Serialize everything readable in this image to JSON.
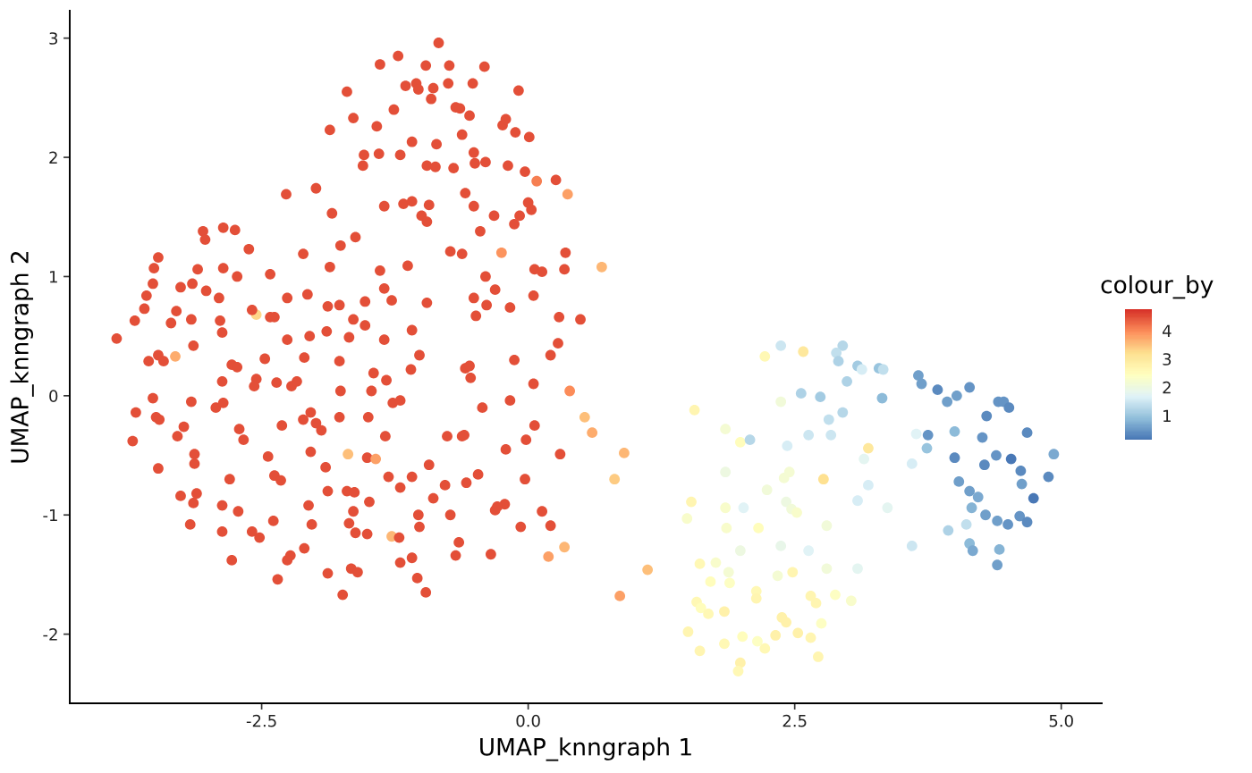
{
  "chart_data": {
    "type": "scatter",
    "xlabel": "UMAP_knngraph 1",
    "ylabel": "UMAP_knngraph 2",
    "clabel": "colour_by",
    "marker": "circle",
    "xlim": [
      -4.3,
      5.38
    ],
    "ylim": [
      -2.58,
      3.23
    ],
    "xticks": [
      -2.5,
      {
        "value": 0,
        "label": "0.0"
      },
      2.5,
      {
        "value": 5,
        "label": "5.0"
      }
    ],
    "yticks": [
      -2,
      -1,
      0,
      1,
      2,
      3
    ],
    "clim": [
      0.15,
      4.76
    ],
    "cticks": [
      1,
      2,
      3,
      4
    ],
    "x": [
      -0.84,
      -1.22,
      -1.39,
      -0.96,
      -0.74,
      -0.41,
      -1.7,
      -1.15,
      -1.05,
      -0.89,
      -0.75,
      -0.52,
      -0.09,
      -1.26,
      -0.91,
      -0.68,
      -0.55,
      -1.64,
      -1.42,
      -0.24,
      -1.86,
      -0.12,
      0.01,
      -1.09,
      -0.86,
      -0.62,
      -1.54,
      -1.4,
      -1.2,
      -0.95,
      -0.7,
      -0.5,
      -0.4,
      -0.19,
      -0.03,
      0.08,
      0.26,
      0.37,
      -2.27,
      -1.99,
      -1.55,
      -0.59,
      -0.51,
      -1.17,
      -1.09,
      -1.35,
      -0.93,
      -1.0,
      -0.95,
      -1.84,
      -0.32,
      -0.45,
      -0.08,
      -0.13,
      0.03,
      0,
      -0.25,
      -0.73,
      -0.62,
      0.35,
      0.69,
      0.06,
      0.13,
      0.34,
      0.05,
      -0.4,
      -0.31,
      -0.51,
      -0.39,
      -0.49,
      0.49,
      0.29,
      -0.17,
      0.28,
      0.21,
      -0.13,
      0.39,
      0.05,
      0.06,
      -0.02,
      -0.43,
      -0.17,
      -0.21,
      -0.6,
      -0.62,
      -0.76,
      -0.47,
      -0.58,
      -0.78,
      -0.03,
      -0.22,
      -0.31,
      0.3,
      0.53,
      0.6,
      0.9,
      0.81,
      0.13,
      -0.07,
      -0.73,
      -0.65,
      -1.03,
      -0.89,
      -0.93,
      -1.09,
      -1.02,
      -1.09,
      -1.04,
      -0.96,
      -1.2,
      -1.28,
      -0.68,
      -0.35,
      0.19,
      0.34,
      1.12,
      0.86,
      -1.03,
      -0.64,
      -0.21,
      -0.51,
      -0.87,
      -0.29,
      0.21,
      -1.21,
      -3.86,
      -3.69,
      -3.6,
      -3.58,
      -3.51,
      -3.47,
      -3.52,
      -3.26,
      -3.15,
      -3.02,
      -2.9,
      -3.1,
      -2.86,
      -2.73,
      -3.05,
      -3.03,
      -2.86,
      -2.75,
      -2.62,
      -2.42,
      -2.26,
      -2.11,
      -2.38,
      -2.42,
      -2.55,
      -2.59,
      -2.26,
      -2.87,
      -2.89,
      -3.16,
      -3.3,
      -3.35,
      -3.14,
      -3.56,
      -3.47,
      -3.42,
      -3.31,
      -3.52,
      -3.16,
      -2.87,
      -2.78,
      -2.73,
      -2.47,
      -2.55,
      -2.57,
      -2.36,
      -2.22,
      -2.17,
      -2.1,
      -2.05,
      -1.89,
      -1.88,
      -1.77,
      -1.68,
      -1.77,
      -1.76,
      -1.86,
      -1.76,
      -1.62,
      -1.53,
      -1.39,
      -1.35,
      -1.28,
      -1.13,
      -0.95,
      -1.64,
      -1.45,
      -1.33,
      -1.27,
      -1.1,
      -1.09,
      -1.02,
      -1.35,
      -1.53,
      -1.47,
      -0.59,
      -0.54,
      -2.07,
      -0.55,
      -3.68,
      -3.49,
      -3.46,
      -3.23,
      -3.29,
      -3.71,
      -3.47,
      -3.13,
      -3.13,
      -2.93,
      -2.71,
      -2.67,
      -2.44,
      -3.26,
      -3.11,
      -3.14,
      -3.17,
      -2.87,
      -2.8,
      -2.72,
      -2.87,
      -2.59,
      -2.52,
      -2.39,
      -2.38,
      -2.32,
      -2.31,
      -2.11,
      -2.04,
      -1.99,
      -2.04,
      -1.9,
      -1.94,
      -1.88,
      -2.06,
      -2.03,
      -2.23,
      -2.26,
      -2.78,
      -2.35,
      -2.1,
      -1.88,
      -1.74,
      -1.66,
      -1.6,
      -1.7,
      -1.63,
      -1.64,
      -1.68,
      -1.62,
      -1.51,
      -1.49,
      -1.69,
      -1.51,
      -1.43,
      -1.77,
      -1.5,
      -1.34,
      -1.31,
      -1.2,
      -2.86,
      -1.2,
      1.56,
      1.85,
      1.99,
      2.08,
      2.22,
      2.37,
      2.43,
      2.45,
      2.4,
      2.24,
      2.02,
      1.85,
      1.85,
      1.53,
      1.49,
      2.16,
      1.99,
      1.86,
      1.61,
      1.76,
      1.88,
      1.89,
      1.71,
      2.14,
      2.14,
      1.58,
      1.62,
      1.69,
      1.84,
      1.5,
      1.61,
      1.84,
      2.01,
      2.15,
      2.22,
      1.99,
      1.97,
      2.37,
      2.58,
      2.95,
      2.89,
      2.91,
      3.09,
      3.13,
      3.29,
      3.33,
      2.99,
      2.56,
      2.74,
      3.32,
      2.82,
      2.95,
      2.63,
      2.84,
      3.19,
      3.15,
      3.64,
      3.6,
      3.75,
      3.74,
      3.66,
      3.69,
      3.84,
      3.93,
      4.02,
      4.14,
      4.0,
      4.0,
      4.26,
      4.3,
      4.41,
      4.46,
      4.51,
      4.68,
      4.39,
      4.53,
      4.28,
      4.62,
      4.93,
      4.88,
      4.63,
      4.04,
      4.14,
      4.22,
      4.74,
      4.16,
      4.29,
      4.4,
      4.5,
      4.61,
      4.68,
      4.11,
      3.94,
      4.14,
      4.17,
      4.42,
      4.4,
      3.6,
      3.37,
      3.09,
      3.19,
      3.09,
      2.8,
      2.63,
      2.37,
      2.8,
      2.77,
      2.42,
      2.47,
      2.52,
      2.34,
      2.48,
      2.65,
      2.7,
      2.88,
      3.03,
      2.38,
      2.42,
      2.75,
      2.32,
      2.53,
      2.65,
      2.72
    ],
    "values": [
      2.96,
      2.85,
      2.78,
      2.77,
      2.77,
      2.76,
      2.55,
      2.6,
      2.62,
      2.58,
      2.62,
      2.62,
      2.56,
      2.4,
      2.49,
      2.42,
      2.35,
      2.33,
      2.26,
      2.27,
      2.23,
      2.21,
      2.17,
      2.13,
      2.11,
      2.19,
      2.02,
      2.03,
      2.02,
      1.93,
      1.91,
      1.95,
      1.96,
      1.93,
      1.88,
      1.8,
      1.81,
      1.69,
      1.69,
      1.74,
      1.93,
      1.7,
      1.59,
      1.61,
      1.63,
      1.59,
      1.6,
      1.51,
      1.46,
      1.53,
      1.51,
      1.38,
      1.51,
      1.44,
      1.56,
      1.62,
      1.2,
      1.21,
      1.19,
      1.2,
      1.08,
      1.06,
      1.04,
      1.06,
      0.84,
      1.0,
      0.89,
      0.82,
      0.76,
      0.67,
      0.64,
      0.66,
      0.74,
      0.44,
      0.34,
      0.3,
      0.04,
      0.1,
      -0.25,
      -0.37,
      -0.1,
      -0.04,
      -0.45,
      -0.33,
      -0.34,
      -0.34,
      -0.66,
      -0.73,
      -0.75,
      -0.7,
      -0.91,
      -0.96,
      -0.49,
      -0.18,
      -0.31,
      -0.48,
      -0.7,
      -0.97,
      -1.1,
      -1.0,
      -1.23,
      -1.0,
      -0.86,
      -0.58,
      -0.68,
      -1.1,
      -1.36,
      -1.53,
      -1.65,
      -1.4,
      -1.18,
      -1.34,
      -1.33,
      -1.35,
      -1.27,
      -1.46,
      -1.68,
      2.57,
      2.41,
      2.32,
      2.04,
      1.92,
      -0.93,
      -1.09,
      -1.19,
      0.48,
      0.63,
      0.73,
      0.84,
      1.07,
      1.16,
      0.94,
      0.91,
      0.94,
      0.88,
      0.82,
      1.06,
      1.07,
      1.0,
      1.38,
      1.31,
      1.41,
      1.39,
      1.23,
      1.02,
      0.82,
      1.19,
      0.66,
      0.66,
      0.68,
      0.72,
      0.47,
      0.53,
      0.63,
      0.64,
      0.71,
      0.61,
      0.42,
      0.29,
      0.34,
      0.29,
      0.33,
      -0.02,
      -0.05,
      0.12,
      0.26,
      0.24,
      0.31,
      0.14,
      0.08,
      0.11,
      0.08,
      0.12,
      0.32,
      0.5,
      0.54,
      0.75,
      0.76,
      0.49,
      0.29,
      0.04,
      1.08,
      1.26,
      1.33,
      0.79,
      1.05,
      0.9,
      0.8,
      1.09,
      0.78,
      0.64,
      0.19,
      0.13,
      -0.06,
      0.22,
      0.55,
      0.34,
      0.47,
      0.59,
      0.04,
      0.23,
      0.15,
      0.85,
      0.25,
      -0.14,
      -0.18,
      -0.2,
      -0.26,
      -0.34,
      -0.38,
      -0.61,
      -0.49,
      -0.57,
      -0.1,
      -0.28,
      -0.37,
      -0.51,
      -0.84,
      -0.82,
      -0.9,
      -1.08,
      -0.92,
      -0.7,
      -0.97,
      -1.14,
      -1.14,
      -1.19,
      -1.05,
      -0.67,
      -0.71,
      -0.25,
      -0.2,
      -0.14,
      -0.23,
      -0.47,
      -0.6,
      -0.29,
      -0.8,
      -0.92,
      -1.08,
      -1.34,
      -1.38,
      -1.38,
      -1.54,
      -1.28,
      -1.49,
      -1.67,
      -1.45,
      -1.48,
      -0.8,
      -0.81,
      -0.97,
      -1.07,
      -1.15,
      -1.16,
      -0.89,
      -0.49,
      -0.52,
      -0.53,
      -0.18,
      -0.18,
      -0.34,
      -0.68,
      -0.77,
      -0.06,
      -0.04,
      -0.12,
      -0.28,
      -0.39,
      -0.37,
      0.33,
      -0.05,
      -0.42,
      -0.64,
      -0.69,
      -0.79,
      -0.94,
      -0.64,
      -0.94,
      -0.89,
      -1.03,
      -1.11,
      -1.3,
      -1.11,
      -1.41,
      -1.4,
      -1.48,
      -1.57,
      -1.56,
      -1.64,
      -1.7,
      -1.73,
      -1.78,
      -1.83,
      -1.81,
      -1.98,
      -2.14,
      -2.08,
      -2.02,
      -2.06,
      -2.12,
      -2.24,
      -2.31,
      0.42,
      0.37,
      0.42,
      0.36,
      0.29,
      0.25,
      0.22,
      0.23,
      0.22,
      0.12,
      0.02,
      -0.01,
      -0.02,
      -0.2,
      -0.14,
      -0.33,
      -0.33,
      -0.44,
      -0.53,
      -0.32,
      -0.57,
      -0.33,
      -0.44,
      0.17,
      0.1,
      0.05,
      -0.05,
      0,
      0.07,
      -0.3,
      -0.52,
      -0.35,
      -0.17,
      -0.05,
      -0.05,
      -0.1,
      -0.31,
      -0.5,
      -0.53,
      -0.58,
      -0.63,
      -0.49,
      -0.68,
      -0.74,
      -0.72,
      -0.8,
      -0.85,
      -0.86,
      -0.94,
      -1.0,
      -1.05,
      -1.08,
      -1.01,
      -1.06,
      -1.08,
      -1.13,
      -1.24,
      -1.3,
      -1.29,
      -1.42,
      -1.26,
      -0.94,
      -0.88,
      -0.75,
      -1.45,
      -1.09,
      -1.3,
      -1.26,
      -1.45,
      -0.7,
      -0.89,
      -0.95,
      -0.98,
      -1.51,
      -1.48,
      -1.68,
      -1.74,
      -1.67,
      -1.72,
      -1.86,
      -1.9,
      -1.91,
      -2.01,
      -1.99,
      -2.03,
      -2.19
    ],
    "cvalues": [
      4.5,
      4.5,
      4.5,
      4.5,
      4.5,
      4.5,
      4.5,
      4.5,
      4.5,
      4.5,
      4.5,
      4.5,
      4.5,
      4.5,
      4.5,
      4.5,
      4.5,
      4.5,
      4.5,
      4.5,
      4.5,
      4.5,
      4.5,
      4.5,
      4.5,
      4.5,
      4.5,
      4.5,
      4.5,
      4.5,
      4.5,
      4.5,
      4.5,
      4.5,
      4.5,
      4.1,
      4.5,
      3.8,
      4.5,
      4.5,
      4.5,
      4.5,
      4.5,
      4.5,
      4.5,
      4.5,
      4.5,
      4.5,
      4.5,
      4.5,
      4.5,
      4.5,
      4.5,
      4.5,
      4.5,
      4.5,
      3.9,
      4.5,
      4.5,
      4.5,
      3.6,
      4.5,
      4.5,
      4.5,
      4.5,
      4.5,
      4.5,
      4.5,
      4.5,
      4.5,
      4.5,
      4.5,
      4.5,
      4.5,
      4.5,
      4.5,
      4.0,
      4.5,
      4.5,
      4.5,
      4.5,
      4.5,
      4.5,
      4.5,
      4.5,
      4.5,
      4.5,
      4.5,
      4.5,
      4.5,
      4.5,
      4.5,
      4.5,
      3.5,
      3.7,
      3.6,
      3.4,
      4.5,
      4.5,
      4.5,
      4.5,
      4.5,
      4.5,
      4.5,
      4.5,
      4.5,
      4.5,
      4.5,
      4.5,
      4.5,
      3.6,
      4.5,
      4.5,
      3.8,
      3.6,
      3.5,
      3.8,
      4.5,
      4.5,
      4.5,
      4.5,
      4.5,
      4.5,
      4.5,
      4.5,
      4.5,
      4.5,
      4.5,
      4.5,
      4.5,
      4.5,
      4.5,
      4.5,
      4.5,
      4.5,
      4.5,
      4.5,
      4.5,
      4.5,
      4.5,
      4.5,
      4.5,
      4.5,
      4.5,
      4.5,
      4.5,
      4.5,
      4.5,
      4.5,
      3.3,
      4.5,
      4.5,
      4.5,
      4.5,
      4.5,
      4.5,
      4.5,
      4.5,
      4.5,
      4.5,
      4.5,
      3.7,
      4.5,
      4.5,
      4.5,
      4.5,
      4.5,
      4.5,
      4.5,
      4.5,
      4.5,
      4.5,
      4.5,
      4.5,
      4.5,
      4.5,
      4.5,
      4.5,
      4.5,
      4.5,
      4.5,
      4.5,
      4.5,
      4.5,
      4.5,
      4.5,
      4.5,
      4.5,
      4.5,
      4.5,
      4.5,
      4.5,
      4.5,
      4.5,
      4.5,
      4.5,
      4.5,
      4.5,
      4.5,
      4.5,
      4.5,
      4.5,
      4.5,
      4.5,
      4.5,
      4.5,
      4.5,
      4.5,
      4.5,
      4.5,
      4.5,
      4.5,
      4.5,
      4.5,
      4.5,
      4.5,
      4.5,
      4.5,
      4.5,
      4.5,
      4.5,
      4.5,
      4.5,
      4.5,
      4.5,
      4.5,
      4.5,
      4.5,
      4.5,
      4.5,
      4.5,
      4.5,
      4.5,
      4.5,
      4.5,
      4.5,
      4.5,
      4.5,
      4.5,
      4.5,
      4.5,
      4.5,
      4.5,
      4.5,
      4.5,
      4.5,
      4.5,
      4.5,
      4.5,
      4.5,
      4.5,
      4.5,
      4.5,
      4.5,
      4.5,
      4.5,
      3.5,
      4.5,
      3.8,
      4.5,
      4.5,
      4.5,
      4.5,
      4.5,
      4.5,
      4.5,
      2.7,
      2.2,
      2.5,
      1.3,
      2.6,
      2.1,
      1.6,
      2.2,
      2.2,
      2.1,
      1.7,
      2.0,
      2.3,
      2.7,
      2.3,
      2.5,
      2.0,
      2.3,
      2.6,
      2.3,
      2.2,
      2.4,
      2.5,
      2.6,
      2.7,
      2.6,
      2.5,
      2.6,
      2.8,
      2.7,
      2.7,
      2.6,
      2.5,
      2.4,
      2.6,
      2.8,
      2.6,
      1.5,
      3.0,
      1.3,
      1.4,
      1.2,
      1.1,
      1.6,
      1.0,
      1.4,
      1.2,
      1.2,
      1.1,
      0.9,
      1.4,
      1.3,
      1.5,
      1.5,
      3.0,
      1.8,
      1.7,
      1.6,
      0.5,
      1.0,
      0.6,
      0.6,
      0.4,
      0.6,
      0.6,
      0.5,
      0.9,
      0.4,
      0.5,
      0.4,
      0.5,
      0.5,
      0.4,
      0.4,
      0.5,
      0.2,
      0.4,
      0.4,
      0.7,
      0.4,
      0.6,
      0.6,
      0.6,
      0.7,
      0.2,
      0.8,
      0.6,
      0.6,
      0.5,
      0.5,
      0.4,
      1.4,
      1.2,
      0.9,
      0.7,
      0.8,
      0.6,
      1.5,
      1.8,
      1.6,
      1.6,
      1.8,
      2.1,
      1.7,
      1.9,
      2.1,
      3.2,
      2.0,
      2.1,
      2.3,
      2.2,
      2.7,
      2.7,
      2.7,
      2.4,
      2.3,
      2.8,
      2.8,
      2.4,
      2.8,
      2.8,
      2.7,
      2.7
    ]
  }
}
